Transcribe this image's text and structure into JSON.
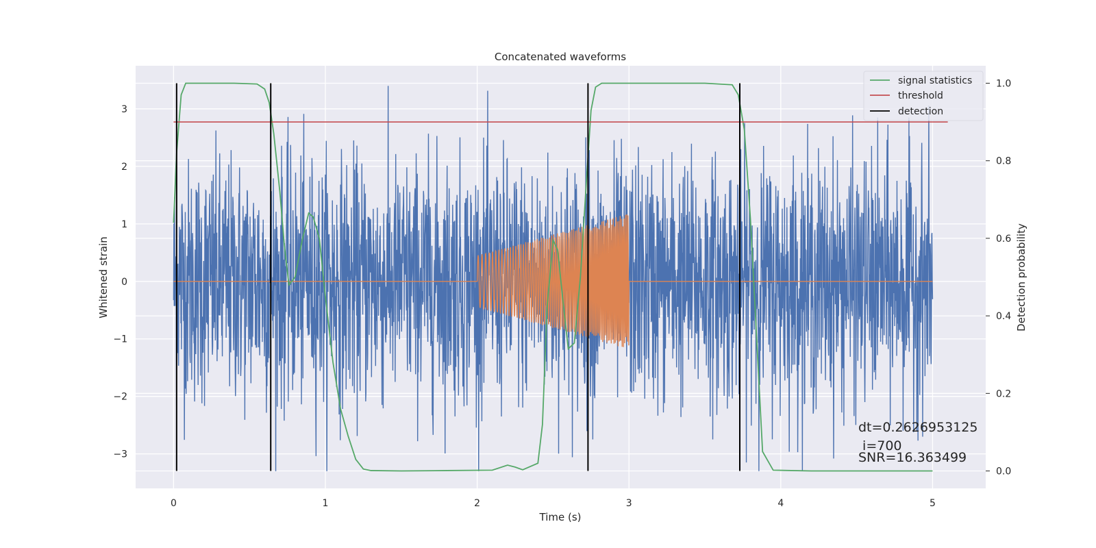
{
  "chart_data": {
    "type": "line",
    "title": "Concatenated waveforms",
    "xlabel": "Time (s)",
    "ylabel": "Whitened strain",
    "y2label": "Detection probability",
    "xlim": [
      -0.25,
      5.35
    ],
    "ylim": [
      -3.6,
      3.75
    ],
    "y2lim": [
      -0.045,
      1.045
    ],
    "xticks": [
      0,
      1,
      2,
      3,
      4,
      5
    ],
    "yticks": [
      -3,
      -2,
      -1,
      0,
      1,
      2,
      3
    ],
    "y2ticks": [
      0.0,
      0.2,
      0.4,
      0.6,
      0.8,
      1.0
    ],
    "xtick_labels": [
      "0",
      "1",
      "2",
      "3",
      "4",
      "5"
    ],
    "ytick_labels": [
      "−3",
      "−2",
      "−1",
      "0",
      "1",
      "2",
      "3"
    ],
    "y2tick_labels": [
      "0.0",
      "0.2",
      "0.4",
      "0.6",
      "0.8",
      "1.0"
    ],
    "grid": true,
    "legend_position": "top-right",
    "legend": [
      {
        "name": "signal statistics",
        "color": "#55a868"
      },
      {
        "name": "threshold",
        "color": "#c44e52"
      },
      {
        "name": "detection",
        "color": "#000000"
      }
    ],
    "noise_series": {
      "color": "#4c72b0",
      "x_range": [
        0,
        5
      ],
      "amplitude_range": [
        -3.3,
        3.4
      ]
    },
    "injected_signal": {
      "color": "#dd8452",
      "x_range": [
        2.0,
        3.0
      ],
      "amplitude_start": 0.45,
      "amplitude_end": 1.18
    },
    "signal_statistics": {
      "x": [
        0,
        0.02,
        0.05,
        0.08,
        0.12,
        0.2,
        0.4,
        0.55,
        0.6,
        0.63,
        0.66,
        0.7,
        0.73,
        0.76,
        0.8,
        0.85,
        0.89,
        0.92,
        0.96,
        1.0,
        1.05,
        1.1,
        1.15,
        1.2,
        1.25,
        1.3,
        1.5,
        1.8,
        2.1,
        2.2,
        2.25,
        2.3,
        2.4,
        2.43,
        2.46,
        2.5,
        2.53,
        2.57,
        2.6,
        2.64,
        2.68,
        2.72,
        2.75,
        2.78,
        2.82,
        3.0,
        3.5,
        3.68,
        3.72,
        3.76,
        3.8,
        3.84,
        3.88,
        3.95,
        4.2,
        5.0
      ],
      "y": [
        0.64,
        0.82,
        0.97,
        1.0,
        1.0,
        1.0,
        1.0,
        0.998,
        0.985,
        0.95,
        0.87,
        0.72,
        0.58,
        0.48,
        0.5,
        0.6,
        0.665,
        0.655,
        0.6,
        0.45,
        0.28,
        0.16,
        0.09,
        0.03,
        0.005,
        0.001,
        0.0,
        0.001,
        0.002,
        0.015,
        0.01,
        0.003,
        0.02,
        0.12,
        0.42,
        0.595,
        0.57,
        0.42,
        0.315,
        0.33,
        0.5,
        0.75,
        0.93,
        0.99,
        1.0,
        1.0,
        1.0,
        0.996,
        0.97,
        0.88,
        0.65,
        0.35,
        0.05,
        0.002,
        0.0,
        0.0
      ]
    },
    "threshold": {
      "value": 0.9,
      "x_range": [
        0,
        5.1
      ]
    },
    "detections": [
      0.02,
      0.64,
      2.73,
      3.73
    ],
    "annotations": [
      "dt=0.2626953125",
      " i=700",
      "SNR=16.363499"
    ]
  }
}
